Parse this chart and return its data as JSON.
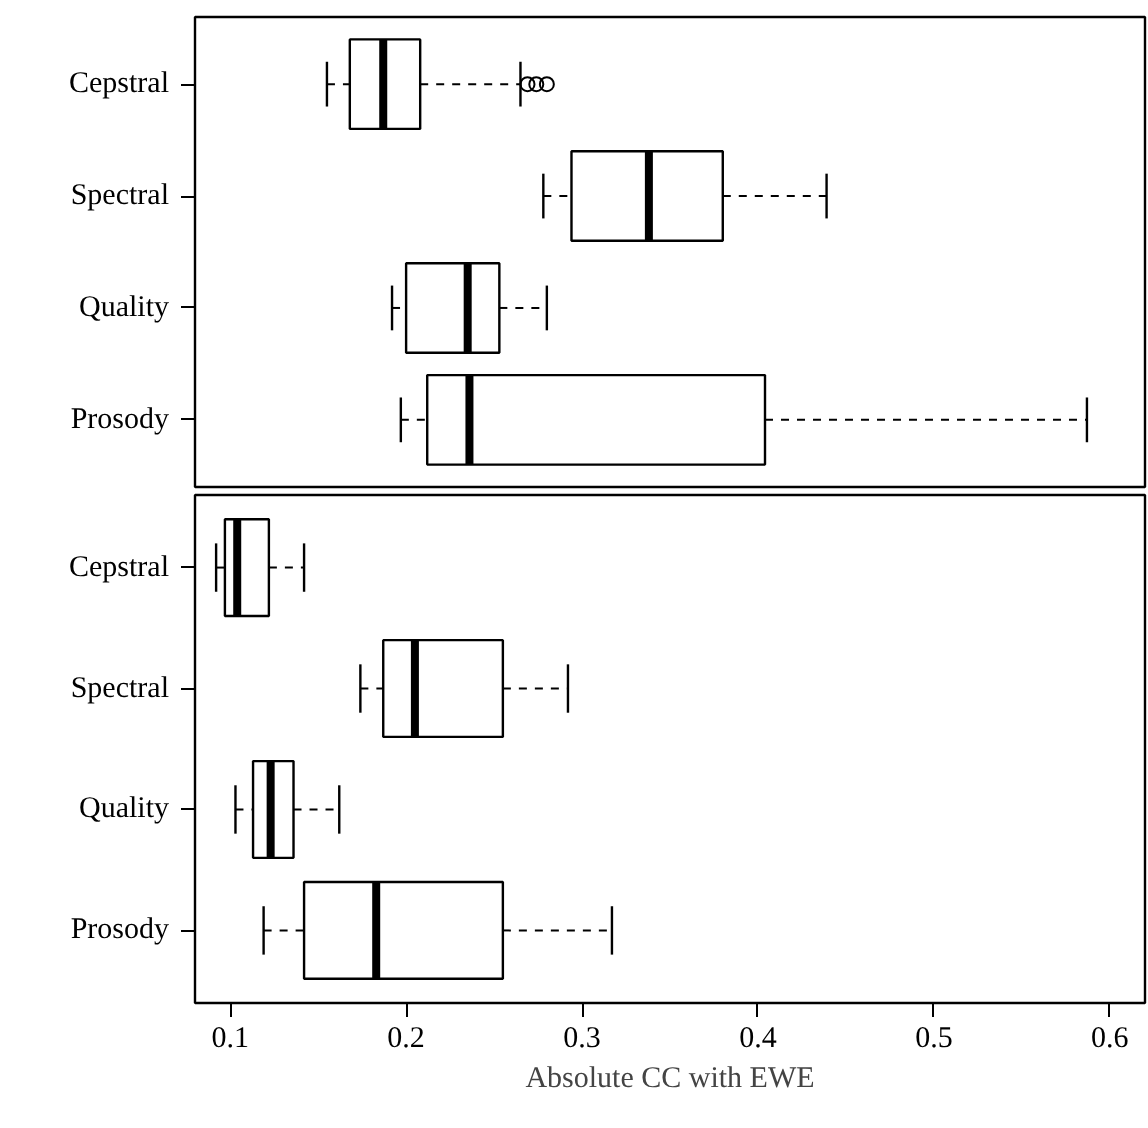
{
  "chart_data": [
    {
      "type": "box",
      "orientation": "horizontal",
      "categories": [
        "Cepstral",
        "Spectral",
        "Quality",
        "Prosody"
      ],
      "xlim": [
        0.08,
        0.62
      ],
      "xticks": [
        0.1,
        0.2,
        0.3,
        0.4,
        0.5,
        0.6
      ],
      "tick_labels": "y",
      "grid": false,
      "legend": false,
      "boxes": [
        {
          "low": 0.155,
          "q1": 0.168,
          "median": 0.187,
          "q3": 0.208,
          "high": 0.265,
          "outliers": [
            0.269,
            0.274,
            0.28
          ]
        },
        {
          "low": 0.278,
          "q1": 0.294,
          "median": 0.338,
          "q3": 0.38,
          "high": 0.439
        },
        {
          "low": 0.192,
          "q1": 0.2,
          "median": 0.235,
          "q3": 0.253,
          "high": 0.28
        },
        {
          "low": 0.197,
          "q1": 0.212,
          "median": 0.236,
          "q3": 0.404,
          "high": 0.587
        }
      ]
    },
    {
      "type": "box",
      "orientation": "horizontal",
      "categories": [
        "Cepstral",
        "Spectral",
        "Quality",
        "Prosody"
      ],
      "xlim": [
        0.08,
        0.62
      ],
      "xticks": [
        0.1,
        0.2,
        0.3,
        0.4,
        0.5,
        0.6
      ],
      "xlabel": "Absolute CC with EWE",
      "grid": false,
      "legend": false,
      "boxes": [
        {
          "low": 0.092,
          "q1": 0.097,
          "median": 0.104,
          "q3": 0.122,
          "high": 0.142
        },
        {
          "low": 0.174,
          "q1": 0.187,
          "median": 0.205,
          "q3": 0.255,
          "high": 0.292
        },
        {
          "low": 0.103,
          "q1": 0.113,
          "median": 0.123,
          "q3": 0.136,
          "high": 0.162
        },
        {
          "low": 0.119,
          "q1": 0.142,
          "median": 0.183,
          "q3": 0.255,
          "high": 0.317
        }
      ]
    }
  ]
}
